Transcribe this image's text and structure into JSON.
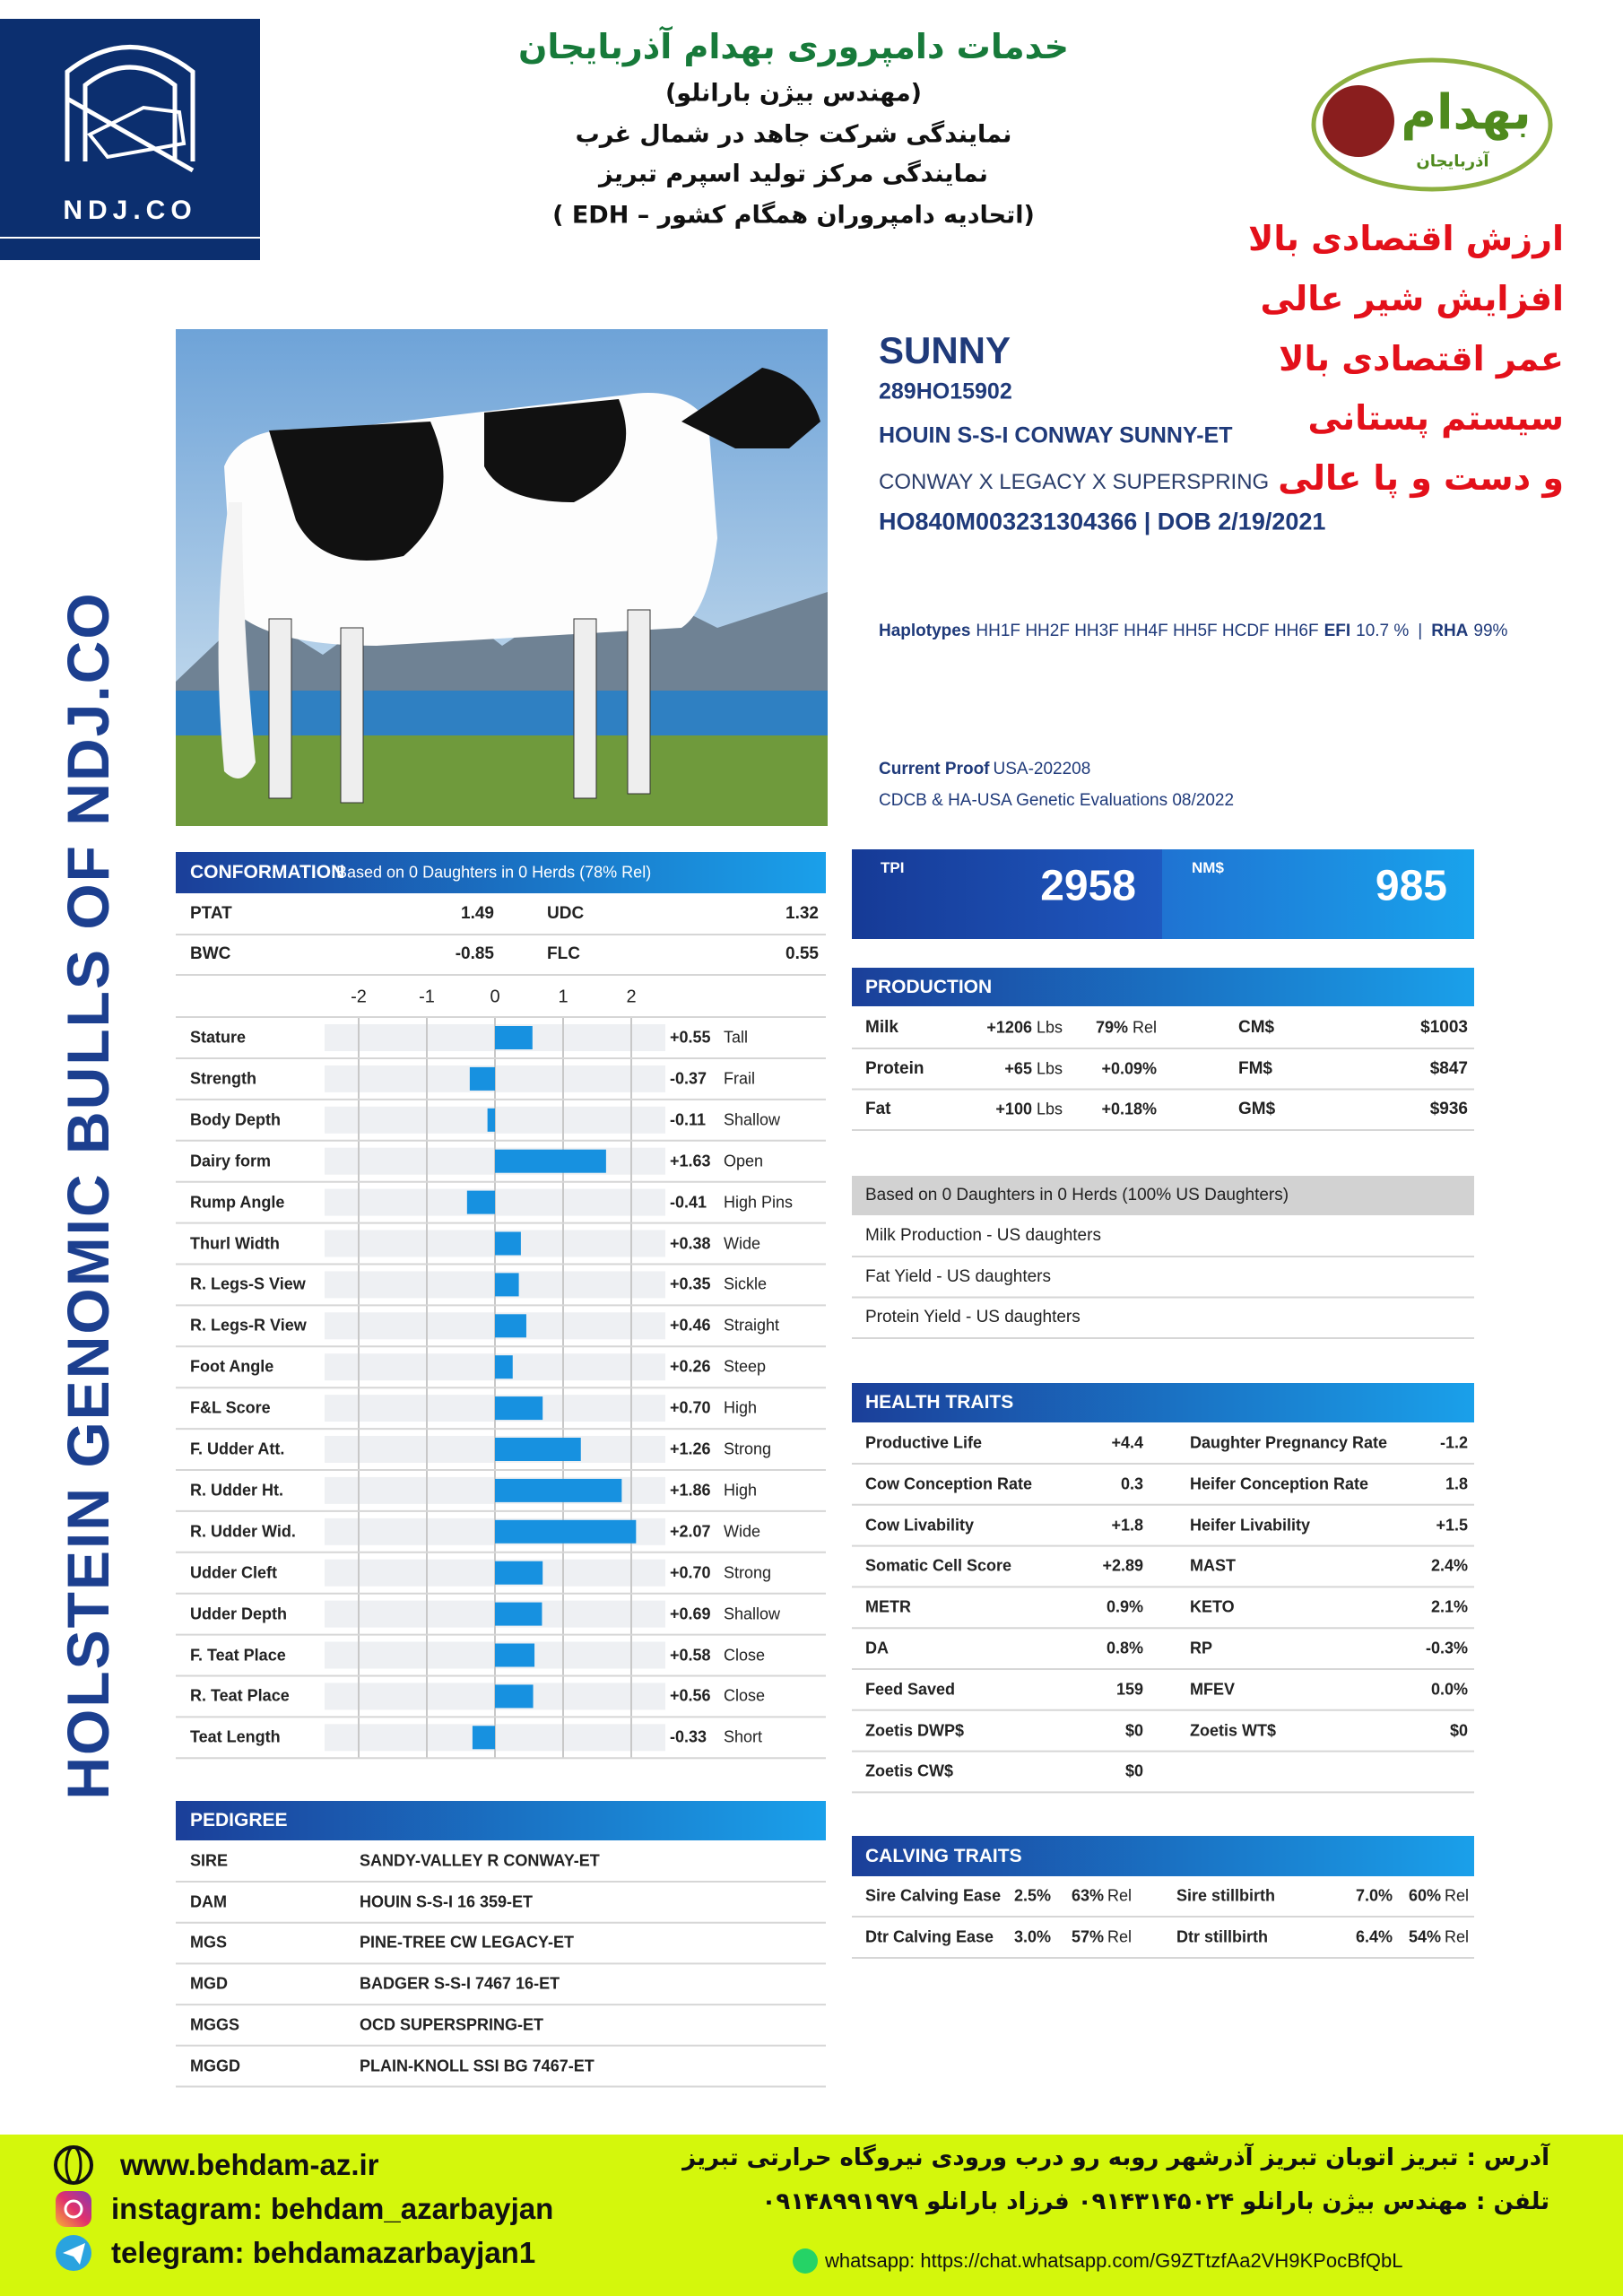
{
  "header": {
    "logo_left": "NDJ.CO",
    "title": "خدمات دامپروری بهدام آذربایجان",
    "lines": [
      "(مهندس بیژن بارانلو)",
      "نمایندگی شرکت جاهد در شمال غرب",
      "نمایندگی مرکز تولید اسپرم تبریز",
      "(اتحادیه دامپروران همگام کشور – EDH )"
    ],
    "logo_right": {
      "name": "بهدام",
      "sub": "آذربایجان"
    }
  },
  "slogans": [
    "ارزش اقتصادی بالا",
    "افزایش شیر عالی",
    "عمر اقتصادی بالا",
    "سیستم پستانی",
    "و دست و پا عالی"
  ],
  "side_title": "HOLSTEIN GENOMIC BULLS OF NDJ.CO",
  "bull": {
    "short_name": "SUNNY",
    "code": "289HO15902",
    "full_name": "HOUIN S-S-I CONWAY SUNNY-ET",
    "pedigree_line": "CONWAY X LEGACY X SUPERSPRING",
    "id_dob": "HO840M003231304366 | DOB 2/19/2021",
    "haplotypes": {
      "label": "Haplotypes",
      "value": "HH1F HH2F HH3F HH4F HH5F HCDF HH6F",
      "efi_label": "EFI",
      "efi": "10.7 %",
      "sep": "|",
      "rha_label": "RHA",
      "rha": "99%"
    },
    "proof": {
      "label": "Current Proof",
      "value": "USA-202208",
      "note": "CDCB & HA-USA Genetic Evaluations 08/2022"
    }
  },
  "conformation": {
    "title": "CONFORMATION",
    "subtitle": "Based on 0 Daughters in 0 Herds (78% Rel)",
    "summary": [
      [
        "PTAT",
        "1.49",
        "UDC",
        "1.32"
      ],
      [
        "BWC",
        "-0.85",
        "FLC",
        "0.55"
      ]
    ],
    "xlim": [
      -2.5,
      2.5
    ],
    "xticks": [
      -2,
      -1,
      0,
      1,
      2
    ],
    "traits": [
      {
        "name": "Stature",
        "value": 0.55,
        "label": "+0.55",
        "desc": "Tall"
      },
      {
        "name": "Strength",
        "value": -0.37,
        "label": "-0.37",
        "desc": "Frail"
      },
      {
        "name": "Body Depth",
        "value": -0.11,
        "label": "-0.11",
        "desc": "Shallow"
      },
      {
        "name": "Dairy form",
        "value": 1.63,
        "label": "+1.63",
        "desc": "Open"
      },
      {
        "name": "Rump Angle",
        "value": -0.41,
        "label": "-0.41",
        "desc": "High Pins"
      },
      {
        "name": "Thurl Width",
        "value": 0.38,
        "label": "+0.38",
        "desc": "Wide"
      },
      {
        "name": "R. Legs-S View",
        "value": 0.35,
        "label": "+0.35",
        "desc": "Sickle"
      },
      {
        "name": "R. Legs-R View",
        "value": 0.46,
        "label": "+0.46",
        "desc": "Straight"
      },
      {
        "name": "Foot Angle",
        "value": 0.26,
        "label": "+0.26",
        "desc": "Steep"
      },
      {
        "name": "F&L Score",
        "value": 0.7,
        "label": "+0.70",
        "desc": "High"
      },
      {
        "name": "F. Udder Att.",
        "value": 1.26,
        "label": "+1.26",
        "desc": "Strong"
      },
      {
        "name": "R. Udder Ht.",
        "value": 1.86,
        "label": "+1.86",
        "desc": "High"
      },
      {
        "name": "R. Udder Wid.",
        "value": 2.07,
        "label": "+2.07",
        "desc": "Wide"
      },
      {
        "name": "Udder Cleft",
        "value": 0.7,
        "label": "+0.70",
        "desc": "Strong"
      },
      {
        "name": "Udder Depth",
        "value": 0.69,
        "label": "+0.69",
        "desc": "Shallow"
      },
      {
        "name": "F. Teat Place",
        "value": 0.58,
        "label": "+0.58",
        "desc": "Close"
      },
      {
        "name": "R. Teat Place",
        "value": 0.56,
        "label": "+0.56",
        "desc": "Close"
      },
      {
        "name": "Teat Length",
        "value": -0.33,
        "label": "-0.33",
        "desc": "Short"
      }
    ]
  },
  "indexes": [
    {
      "label": "TPI",
      "value": "2958"
    },
    {
      "label": "NM$",
      "value": "985"
    }
  ],
  "production": {
    "title": "PRODUCTION",
    "rows": [
      {
        "trait": "Milk",
        "value": "+1206",
        "unit": "Lbs",
        "rel": "79%",
        "rel_unit": "Rel",
        "index": "CM$",
        "index_value": "$1003"
      },
      {
        "trait": "Protein",
        "value": "+65",
        "unit": "Lbs",
        "rel": "+0.09%",
        "index": "FM$",
        "index_value": "$847"
      },
      {
        "trait": "Fat",
        "value": "+100",
        "unit": "Lbs",
        "rel": "+0.18%",
        "index": "GM$",
        "index_value": "$936"
      }
    ]
  },
  "us_daughters": {
    "title": "Based on 0 Daughters in 0 Herds (100% US Daughters)",
    "rows": [
      "Milk Production - US daughters",
      "Fat Yield - US daughters",
      "Protein Yield - US daughters"
    ]
  },
  "health": {
    "title": "HEALTH TRAITS",
    "rows": [
      [
        "Productive Life",
        "+4.4",
        "Daughter Pregnancy Rate",
        "-1.2"
      ],
      [
        "Cow Conception Rate",
        "0.3",
        "Heifer Conception Rate",
        "1.8"
      ],
      [
        "Cow Livability",
        "+1.8",
        "Heifer Livability",
        "+1.5"
      ],
      [
        "Somatic Cell Score",
        "+2.89",
        "MAST",
        "2.4%"
      ],
      [
        "METR",
        "0.9%",
        "KETO",
        "2.1%"
      ],
      [
        "DA",
        "0.8%",
        "RP",
        "-0.3%"
      ],
      [
        "Feed Saved",
        "159",
        "MFEV",
        "0.0%"
      ],
      [
        "Zoetis DWP$",
        "$0",
        "Zoetis WT$",
        "$0"
      ],
      [
        "Zoetis CW$",
        "$0"
      ]
    ]
  },
  "calving": {
    "title": "CALVING TRAITS",
    "rows": [
      [
        "Sire Calving Ease",
        "2.5%",
        "63%",
        "Rel",
        "Sire stillbirth",
        "7.0%",
        "60%",
        "Rel"
      ],
      [
        "Dtr Calving Ease",
        "3.0%",
        "57%",
        "Rel",
        "Dtr stillbirth",
        "6.4%",
        "54%",
        "Rel"
      ]
    ]
  },
  "pedigree": {
    "title": "PEDIGREE",
    "rows": [
      [
        "SIRE",
        "SANDY-VALLEY R CONWAY-ET"
      ],
      [
        "DAM",
        "HOUIN S-S-I 16 359-ET"
      ],
      [
        "MGS",
        "PINE-TREE CW LEGACY-ET"
      ],
      [
        "MGD",
        "BADGER S-S-I 7467 16-ET"
      ],
      [
        "MGGS",
        "OCD SUPERSPRING-ET"
      ],
      [
        "MGGD",
        "PLAIN-KNOLL SSI BG 7467-ET"
      ]
    ]
  },
  "footer": {
    "website": "www.behdam-az.ir",
    "instagram": "instagram: behdam_azarbayjan",
    "telegram": "telegram: behdamazarbayjan1",
    "address": "آدرس : تبریز اتوبان تبریز آذرشهر روبه رو درب ورودی نیروگاه حرارتی تبریز",
    "phone": "تلفن : مهندس بیژن بارانلو ۰۹۱۴۳۱۴۵۰۲۴     فرزاد بارانلو ۰۹۱۴۸۹۹۱۹۷۹",
    "whatsapp": "whatsapp: https://chat.whatsapp.com/G9ZTtzfAa2VH9KPocBfQbL"
  }
}
